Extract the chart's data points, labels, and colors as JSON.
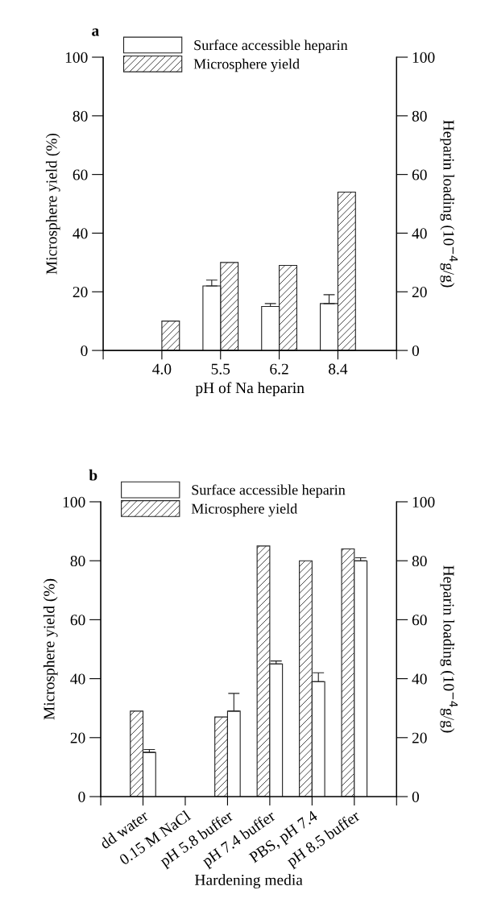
{
  "chart_data": [
    {
      "type": "bar",
      "title": "a",
      "xlabel": "pH of Na heparin",
      "ylabel": "Microsphere yield (%)",
      "y2label": "Heparin loading (10$^{−4}$g/g)",
      "categories": [
        "4.0",
        "5.5",
        "6.2",
        "8.4"
      ],
      "ylim": [
        0,
        100
      ],
      "yticks": [
        0,
        20,
        40,
        60,
        80,
        100
      ],
      "y2lim": [
        0,
        100
      ],
      "y2ticks": [
        0,
        20,
        40,
        60,
        80,
        100
      ],
      "legend": "top left",
      "series": [
        {
          "name": "Surface accessible heparin",
          "color": "#ffffff",
          "axis": "y2",
          "values": [
            null,
            22,
            15,
            16
          ],
          "errors": [
            null,
            [
              22,
              24
            ],
            [
              15,
              16
            ],
            [
              16,
              19
            ]
          ]
        },
        {
          "name": "Microsphere yield",
          "color": "#222222",
          "values": [
            10,
            30,
            29,
            54
          ]
        }
      ]
    },
    {
      "type": "bar",
      "title": "b",
      "xlabel": "Hardening media",
      "ylabel": "Microsphere yield (%)",
      "y2label": "Heparin loading (10$^{−4}$g/g)",
      "categories": [
        "dd water",
        "0.15 M NaCl",
        "pH 5.8 buffer",
        "pH 7.4 buffer",
        "PBS, pH 7.4",
        "pH 8.5 buffer"
      ],
      "ylim": [
        0,
        100
      ],
      "yticks": [
        0,
        20,
        40,
        60,
        80,
        100
      ],
      "y2lim": [
        0,
        100
      ],
      "y2ticks": [
        0,
        20,
        40,
        60,
        80,
        100
      ],
      "legend": "top left",
      "series": [
        {
          "name": "Surface accessible heparin",
          "color": "#ffffff",
          "axis": "y2",
          "values": [
            15,
            null,
            29,
            45,
            39,
            80
          ],
          "errors": [
            [
              15,
              16
            ],
            null,
            [
              29,
              35
            ],
            [
              45,
              46
            ],
            [
              39,
              42
            ],
            [
              80,
              81
            ]
          ]
        },
        {
          "name": "Microsphere yield",
          "color": "#222222",
          "values": [
            29,
            null,
            27,
            85,
            80,
            84
          ]
        }
      ]
    }
  ]
}
